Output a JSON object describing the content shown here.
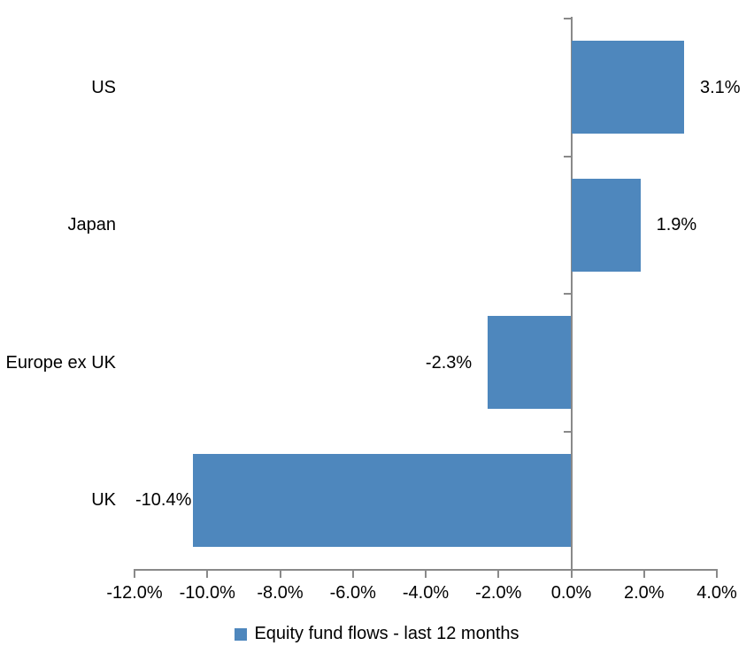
{
  "chart_data": {
    "type": "bar",
    "orientation": "horizontal",
    "title": "",
    "xlabel": "",
    "ylabel": "",
    "categories": [
      "US",
      "Japan",
      "Europe ex UK",
      "UK"
    ],
    "series": [
      {
        "name": "Equity fund flows - last 12 months",
        "values": [
          3.1,
          1.9,
          -2.3,
          -10.4
        ],
        "data_labels": [
          "3.1%",
          "1.9%",
          "-2.3%",
          "-10.4%"
        ],
        "color": "#4e87bd"
      }
    ],
    "xlim": [
      -12,
      4
    ],
    "xticks": [
      {
        "value": -12,
        "label": "-12.0%"
      },
      {
        "value": -10,
        "label": "-10.0%"
      },
      {
        "value": -8,
        "label": "-8.0%"
      },
      {
        "value": -6,
        "label": "-6.0%"
      },
      {
        "value": -4,
        "label": "-4.0%"
      },
      {
        "value": -2,
        "label": "-2.0%"
      },
      {
        "value": 0,
        "label": "0.0%"
      },
      {
        "value": 2,
        "label": "2.0%"
      },
      {
        "value": 4,
        "label": "4.0%"
      }
    ],
    "grid": false,
    "legend_position": "bottom",
    "colors": {
      "bar": "#4e87bd",
      "axis": "#898989",
      "text": "#000000",
      "background": "#ffffff"
    }
  },
  "legend": {
    "label": "Equity fund flows - last 12 months",
    "marker_color": "#4e87bd"
  }
}
